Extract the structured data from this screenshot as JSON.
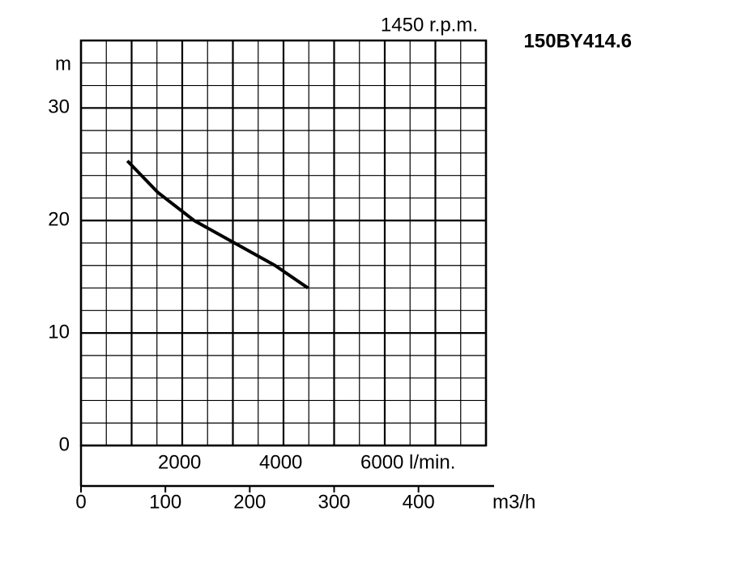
{
  "chart_data": {
    "type": "line",
    "title": "150BY414.6",
    "annotation": "1450 r.p.m.",
    "ylabel": "m",
    "xlabel": "m3/h",
    "x": [
      55,
      91,
      134,
      182,
      230,
      269
    ],
    "series": [
      {
        "color": "#000000",
        "values": [
          25.3,
          22.5,
          20,
          18,
          16,
          14
        ]
      }
    ],
    "xlim": [
      0,
      480
    ],
    "xticks": [
      0,
      100,
      200,
      300,
      400
    ],
    "x2lim": [
      0,
      8000
    ],
    "x2ticks": [
      2000,
      4000,
      {
        "value": 6000,
        "label": "6000 l/min."
      }
    ],
    "ylim": [
      0,
      36
    ],
    "yticks": [
      0,
      10,
      20,
      30
    ],
    "grid": true
  }
}
